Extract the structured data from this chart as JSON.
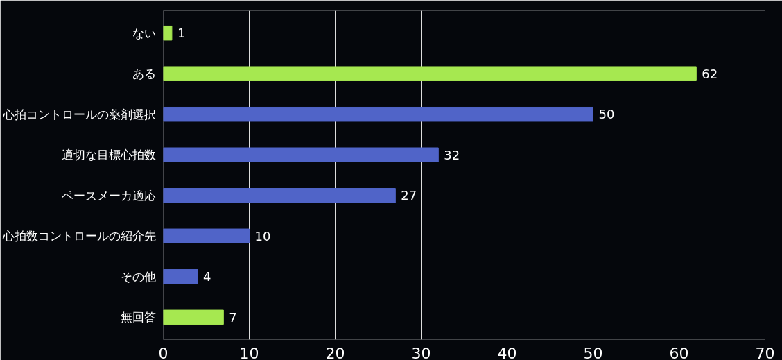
{
  "chart_data": {
    "type": "bar",
    "orientation": "horizontal",
    "categories": [
      "ない",
      "ある",
      "心拍コントロールの薬剤選択",
      "適切な目標心拍数",
      "ペースメーカ適応",
      "心拍数コントロールの紹介先",
      "その他",
      "無回答"
    ],
    "values": [
      1,
      62,
      50,
      32,
      27,
      10,
      4,
      7
    ],
    "colors": [
      "#a6e850",
      "#a6e850",
      "#5064c8",
      "#5064c8",
      "#5064c8",
      "#5064c8",
      "#5064c8",
      "#a6e850"
    ],
    "xlim": [
      0,
      70
    ],
    "xticks": [
      0,
      10,
      20,
      30,
      40,
      50,
      60,
      70
    ],
    "grid": "x",
    "data_labels": true
  }
}
